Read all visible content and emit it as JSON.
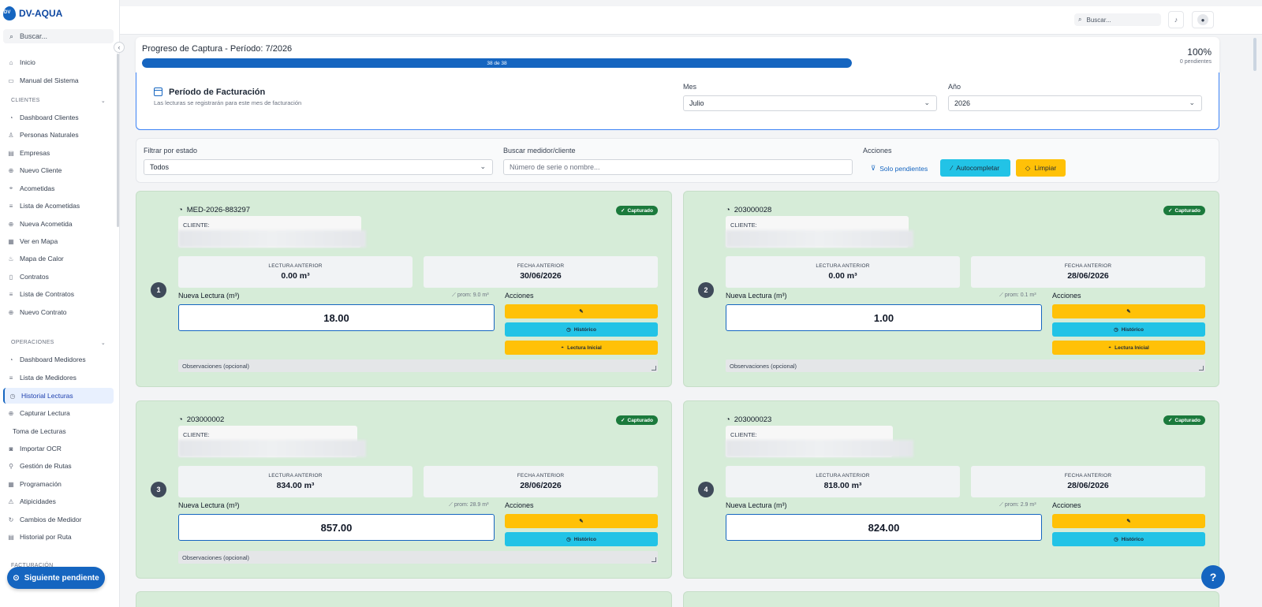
{
  "app": {
    "logo_mark": "DV",
    "logo_text": "DV-AQUA"
  },
  "sidebar": {
    "search_placeholder": "Buscar...",
    "items_top": [
      {
        "label": "Inicio",
        "icon": "home-icon"
      },
      {
        "label": "Manual del Sistema",
        "icon": "book-icon"
      }
    ],
    "section_clientes": "CLIENTES",
    "items_clientes": [
      {
        "label": "Dashboard Clientes"
      },
      {
        "label": "Personas Naturales"
      },
      {
        "label": "Empresas"
      },
      {
        "label": "Nuevo Cliente"
      },
      {
        "label": "Acometidas"
      },
      {
        "label": "Lista de Acometidas"
      },
      {
        "label": "Nueva Acometida"
      },
      {
        "label": "Ver en Mapa"
      },
      {
        "label": "Mapa de Calor"
      },
      {
        "label": "Contratos"
      },
      {
        "label": "Lista de Contratos"
      },
      {
        "label": "Nuevo Contrato"
      }
    ],
    "section_operaciones": "OPERACIONES",
    "items_operaciones": [
      {
        "label": "Dashboard Medidores"
      },
      {
        "label": "Lista de Medidores"
      },
      {
        "label": "Historial Lecturas"
      },
      {
        "label": "Capturar Lectura"
      },
      {
        "label": "Toma de Lecturas"
      },
      {
        "label": "Importar OCR"
      },
      {
        "label": "Gestión de Rutas"
      },
      {
        "label": "Programación"
      },
      {
        "label": "Atipicidades"
      },
      {
        "label": "Cambios de Medidor"
      },
      {
        "label": "Historial por Ruta"
      }
    ],
    "section_facturacion": "FACTURACIÓN",
    "next_button": "Siguiente pendiente"
  },
  "topbar": {
    "search_placeholder": "Buscar..."
  },
  "progress": {
    "title": "Progreso de Captura - Período: 7/2026",
    "bar_text": "38 de 38",
    "fraction": 1.0,
    "percent": "100%",
    "pending": "0 pendientes"
  },
  "period": {
    "title": "Período de Facturación",
    "subtitle": "Las lecturas se registrarán para este mes de facturación",
    "month_label": "Mes",
    "month_value": "Julio",
    "year_label": "Año",
    "year_value": "2026"
  },
  "filters": {
    "state_label": "Filtrar por estado",
    "state_value": "Todos",
    "search_label": "Buscar medidor/cliente",
    "search_placeholder": "Número de serie o nombre...",
    "actions_label": "Acciones",
    "only_pending": "Solo pendientes",
    "autocomplete": "Autocompletar",
    "clear": "Limpiar"
  },
  "card_labels": {
    "cliente": "CLIENTE:",
    "lectura_anterior": "LECTURA ANTERIOR",
    "fecha_anterior": "FECHA ANTERIOR",
    "nueva_lectura": "Nueva Lectura (m³)",
    "acciones": "Acciones",
    "historico": "Histórico",
    "lectura_inicial": "Lectura Inicial",
    "observaciones": "Observaciones (opcional)",
    "status": "Capturado"
  },
  "meters": [
    {
      "num": "1",
      "serial": "MED-2026-883297",
      "prev_reading": "0.00 m³",
      "prev_date": "30/06/2026",
      "prom": "prom: 9.0 m³",
      "reading": "18.00"
    },
    {
      "num": "2",
      "serial": "203000028",
      "prev_reading": "0.00 m³",
      "prev_date": "28/06/2026",
      "prom": "prom: 0.1 m³",
      "reading": "1.00"
    },
    {
      "num": "3",
      "serial": "203000002",
      "prev_reading": "834.00 m³",
      "prev_date": "28/06/2026",
      "prom": "prom: 28.9 m³",
      "reading": "857.00"
    },
    {
      "num": "4",
      "serial": "203000023",
      "prev_reading": "818.00 m³",
      "prev_date": "28/06/2026",
      "prom": "prom: 2.9 m³",
      "reading": "824.00"
    }
  ],
  "help_label": "?",
  "colors": {
    "primary": "#1565c0",
    "card_green": "#d6ecd8",
    "badge_green": "#1b7a3c",
    "yellow": "#ffc107",
    "cyan": "#22c3e6"
  }
}
